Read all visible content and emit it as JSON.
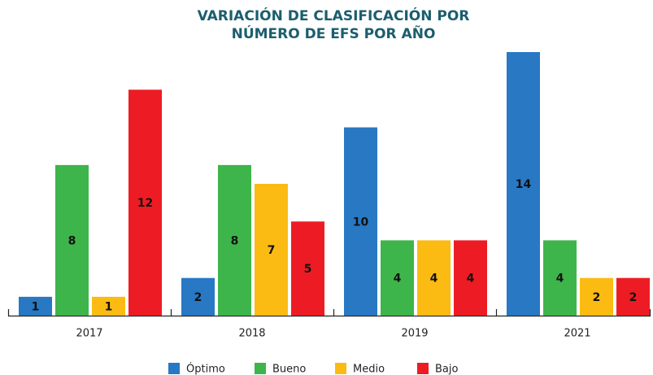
{
  "chart_data": {
    "type": "bar",
    "title": [
      "VARIACIÓN DE CLASIFICACIÓN POR",
      "NÚMERO DE EFS POR AÑO"
    ],
    "categories": [
      "2017",
      "2018",
      "2019",
      "2021"
    ],
    "series": [
      {
        "name": "Óptimo",
        "color": "#2878c4",
        "values": [
          1,
          2,
          10,
          14
        ]
      },
      {
        "name": "Bueno",
        "color": "#3db54a",
        "values": [
          8,
          8,
          4,
          4
        ]
      },
      {
        "name": "Medio",
        "color": "#fbbb13",
        "values": [
          1,
          7,
          4,
          2
        ]
      },
      {
        "name": "Bajo",
        "color": "#ed1c24",
        "values": [
          12,
          5,
          4,
          2
        ]
      }
    ],
    "ylim": [
      0,
      14
    ],
    "legend": "bottom"
  }
}
